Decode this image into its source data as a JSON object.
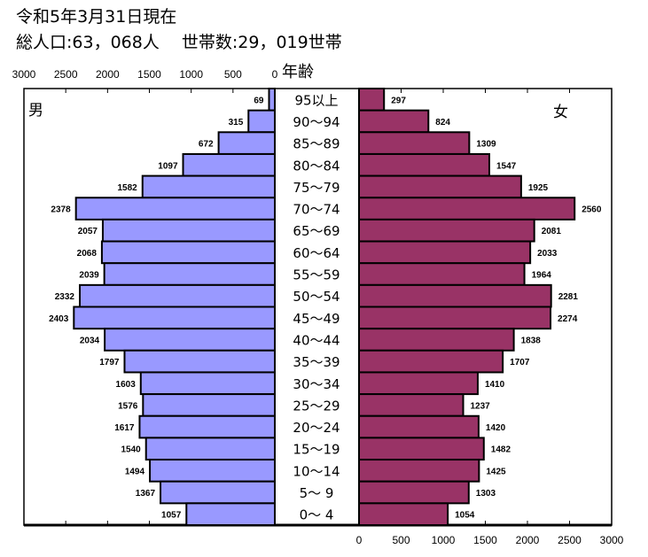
{
  "header": {
    "date_line": "令和5年3月31日現在",
    "summary_line": "総人口:63，068人　 世帯数:29，019世帯"
  },
  "chart_data": {
    "type": "bar",
    "orientation": "horizontal-pyramid",
    "age_axis_label": "年齢",
    "categories": [
      "95以上",
      "90～94",
      "85～89",
      "80～84",
      "75～79",
      "70～74",
      "65～69",
      "60～64",
      "55～59",
      "50～54",
      "45～49",
      "40～44",
      "35～39",
      "30～34",
      "25～29",
      "20～24",
      "15～19",
      "10～14",
      "5～ 9",
      "0～ 4"
    ],
    "series": [
      {
        "name": "男",
        "side": "left",
        "color": "#9999ff",
        "values": [
          69,
          315,
          672,
          1097,
          1582,
          2378,
          2057,
          2068,
          2039,
          2332,
          2403,
          2034,
          1797,
          1603,
          1576,
          1617,
          1540,
          1494,
          1367,
          1057
        ]
      },
      {
        "name": "女",
        "side": "right",
        "color": "#993366",
        "values": [
          297,
          824,
          1309,
          1547,
          1925,
          2560,
          2081,
          2033,
          1964,
          2281,
          2274,
          1838,
          1707,
          1410,
          1237,
          1420,
          1482,
          1425,
          1303,
          1054
        ]
      }
    ],
    "xlim": [
      0,
      3000
    ],
    "left_ticks": [
      "3000",
      "2500",
      "2000",
      "1500",
      "1000",
      "500",
      "0"
    ],
    "right_ticks": [
      "0",
      "500",
      "1000",
      "1500",
      "2000",
      "2500",
      "3000"
    ],
    "grid": false
  }
}
